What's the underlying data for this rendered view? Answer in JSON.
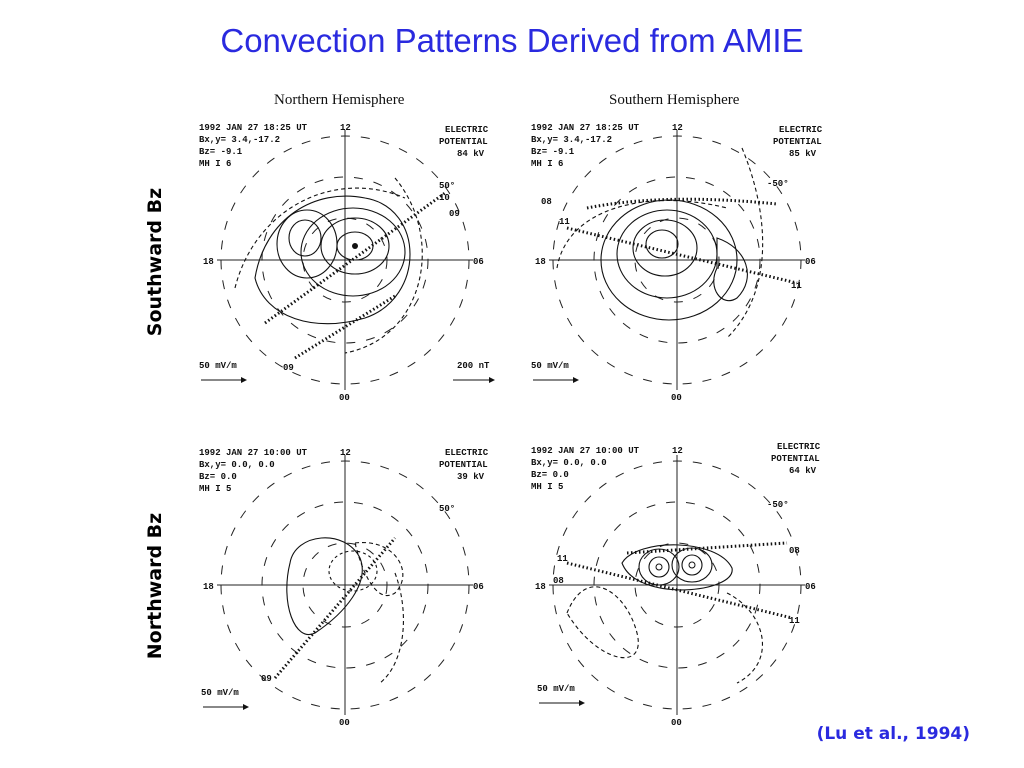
{
  "title": "Convection Patterns Derived from AMIE",
  "rows": {
    "south": "Southward Bz",
    "north": "Northward Bz"
  },
  "hemispheres": {
    "northern": "Northern Hemisphere",
    "southern": "Southern Hemisphere"
  },
  "citation": "(Lu et al., 1994)",
  "panels": {
    "p1": {
      "info": [
        "1992 JAN 27 18:25 UT",
        "Bx,y=  3.4,-17.2",
        "Bz= -9.1",
        "MH I  6"
      ],
      "potential": [
        "ELECTRIC",
        "POTENTIAL",
        "84 kV"
      ],
      "hours": {
        "top": "12",
        "left": "18",
        "right": "06",
        "bottom": "00"
      },
      "lat": "50°",
      "scale": "50 mV/m",
      "extra": "200 nT",
      "marks": [
        "10",
        "09",
        "09"
      ]
    },
    "p2": {
      "info": [
        "1992 JAN 27 18:25 UT",
        "Bx,y=  3.4,-17.2",
        "Bz= -9.1",
        "MH I  6"
      ],
      "potential": [
        "ELECTRIC",
        "POTENTIAL",
        "85 kV"
      ],
      "hours": {
        "top": "12",
        "left": "18",
        "right": "06",
        "bottom": "00"
      },
      "lat": "-50°",
      "scale": "50 mV/m",
      "marks": [
        "08",
        "11",
        "11"
      ]
    },
    "p3": {
      "info": [
        "1992 JAN 27 10:00 UT",
        "Bx,y=  0.0,  0.0",
        "Bz=  0.0",
        "MH I  5"
      ],
      "potential": [
        "ELECTRIC",
        "POTENTIAL",
        "39 kV"
      ],
      "hours": {
        "top": "12",
        "left": "18",
        "right": "06",
        "bottom": "00"
      },
      "lat": "50°",
      "scale": "50 mV/m",
      "marks": [
        "09"
      ]
    },
    "p4": {
      "info": [
        "1992 JAN 27 10:00 UT",
        "Bx,y=  0.0,  0.0",
        "Bz=  0.0",
        "MH I  5"
      ],
      "potential": [
        "ELECTRIC",
        "POTENTIAL",
        "64 kV"
      ],
      "hours": {
        "top": "12",
        "left": "18",
        "right": "06",
        "bottom": "00"
      },
      "lat": "-50°",
      "scale": "50 mV/m",
      "marks": [
        "11",
        "08",
        "08",
        "11"
      ]
    }
  }
}
